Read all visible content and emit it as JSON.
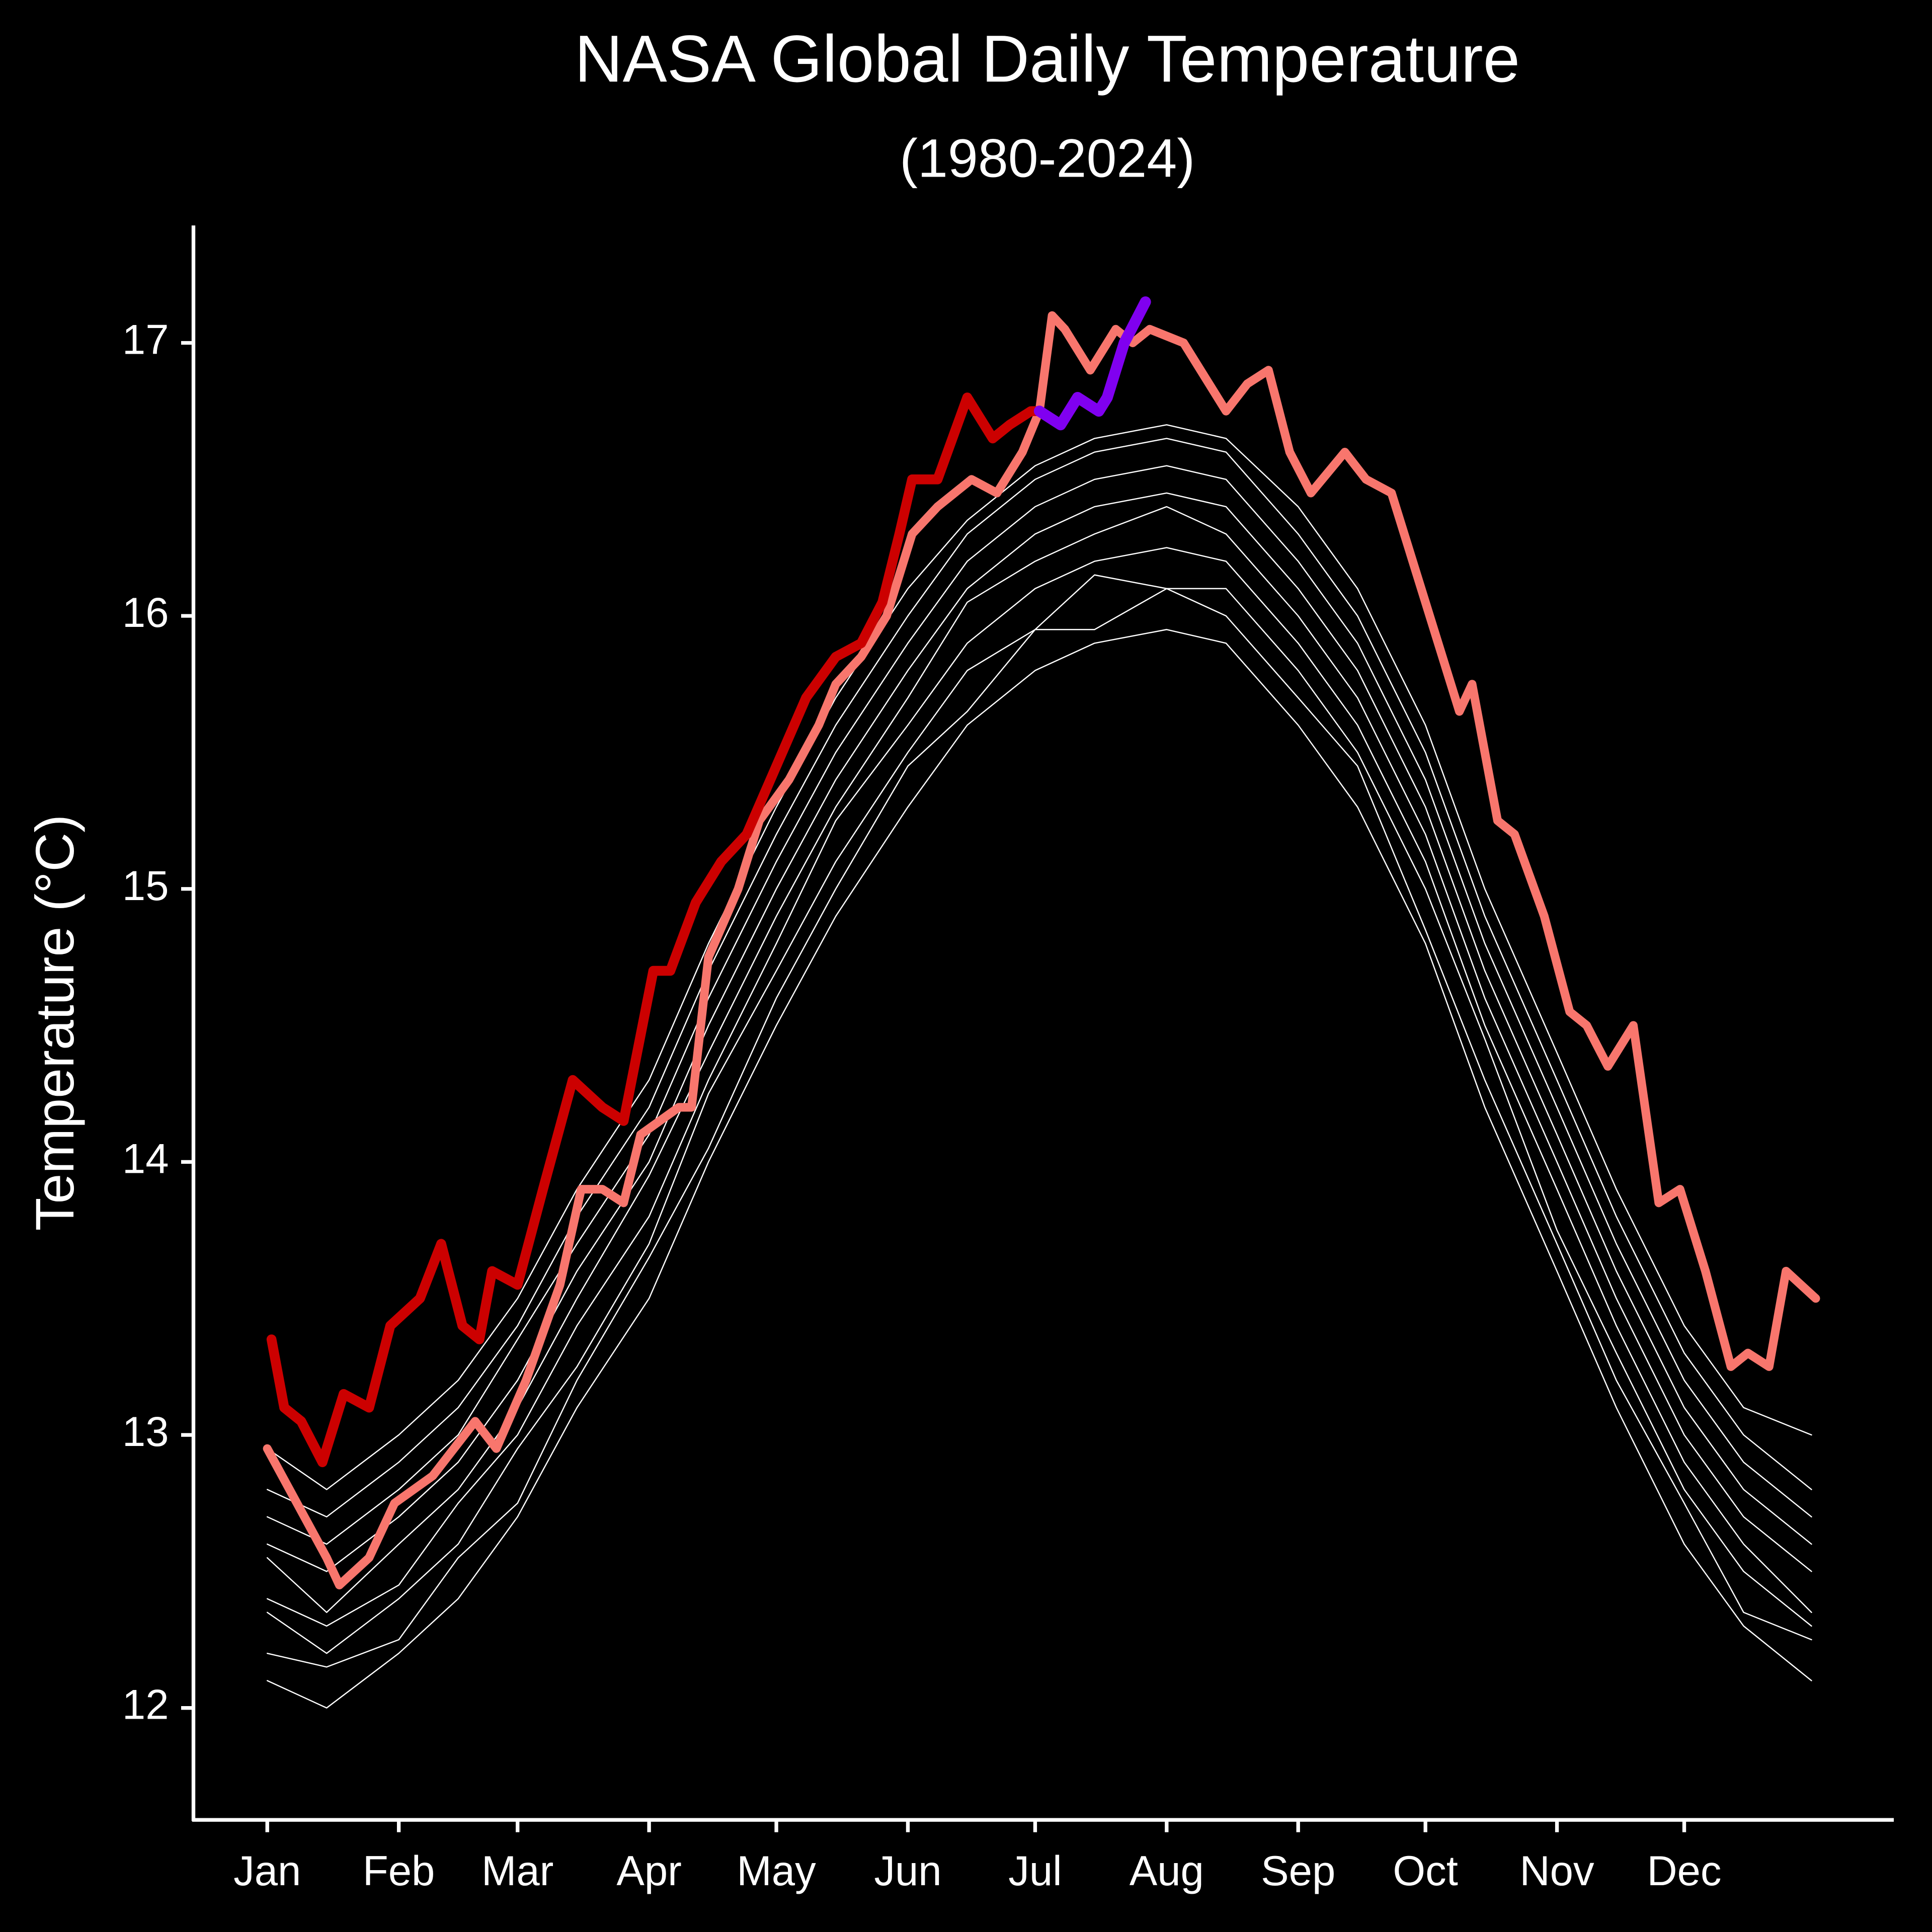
{
  "chart_data": {
    "type": "line",
    "title": "NASA Global Daily Temperature",
    "subtitle": "(1980-2024)",
    "y_label": "Temperature (°C)",
    "background": "#000000",
    "xlim": [
      -16.4,
      384.4
    ],
    "ylim": [
      11.59,
      17.43
    ],
    "xticks": [
      {
        "value": 1,
        "label": "Jan"
      },
      {
        "value": 32,
        "label": "Feb"
      },
      {
        "value": 60,
        "label": "Mar"
      },
      {
        "value": 91,
        "label": "Apr"
      },
      {
        "value": 121,
        "label": "May"
      },
      {
        "value": 152,
        "label": "Jun"
      },
      {
        "value": 182,
        "label": "Jul"
      },
      {
        "value": 213,
        "label": "Aug"
      },
      {
        "value": 244,
        "label": "Sep"
      },
      {
        "value": 274,
        "label": "Oct"
      },
      {
        "value": 305,
        "label": "Nov"
      },
      {
        "value": 335,
        "label": "Dec"
      }
    ],
    "yticks": [
      12,
      13,
      14,
      15,
      16,
      17
    ],
    "grid": false,
    "x": [
      1,
      15,
      32,
      46,
      60,
      74,
      91,
      105,
      121,
      135,
      152,
      166,
      182,
      196,
      213,
      227,
      244,
      258,
      274,
      288,
      305,
      319,
      335,
      349,
      365
    ],
    "series": [
      {
        "color": "#ffffff",
        "width": 1,
        "values": [
          12.1,
          12.0,
          12.2,
          12.4,
          12.7,
          13.1,
          13.5,
          14.0,
          14.5,
          14.9,
          15.3,
          15.6,
          15.8,
          15.9,
          15.95,
          15.9,
          15.6,
          15.3,
          14.8,
          14.2,
          13.6,
          13.1,
          12.6,
          12.3,
          12.1
        ]
      },
      {
        "color": "#ffffff",
        "width": 1,
        "values": [
          12.2,
          12.15,
          12.25,
          12.55,
          12.75,
          13.2,
          13.65,
          14.05,
          14.6,
          15.0,
          15.45,
          15.65,
          15.95,
          15.95,
          16.1,
          16.0,
          15.7,
          15.45,
          14.85,
          14.3,
          13.7,
          13.2,
          12.75,
          12.35,
          12.25
        ]
      },
      {
        "color": "#ffffff",
        "width": 1,
        "values": [
          12.35,
          12.2,
          12.4,
          12.6,
          12.95,
          13.25,
          13.7,
          14.25,
          14.7,
          15.1,
          15.5,
          15.8,
          15.95,
          16.15,
          16.1,
          16.1,
          15.8,
          15.5,
          15.0,
          14.45,
          13.75,
          13.3,
          12.8,
          12.5,
          12.3
        ]
      },
      {
        "color": "#ffffff",
        "width": 1,
        "values": [
          12.4,
          12.3,
          12.45,
          12.75,
          13.0,
          13.4,
          13.8,
          14.3,
          14.8,
          15.25,
          15.6,
          15.9,
          16.1,
          16.2,
          16.25,
          16.2,
          15.9,
          15.6,
          15.1,
          14.5,
          13.9,
          13.4,
          12.9,
          12.6,
          12.35
        ]
      },
      {
        "color": "#ffffff",
        "width": 1,
        "values": [
          12.55,
          12.35,
          12.6,
          12.8,
          13.1,
          13.5,
          13.95,
          14.4,
          14.9,
          15.3,
          15.7,
          16.05,
          16.2,
          16.3,
          16.4,
          16.3,
          16.0,
          15.7,
          15.2,
          14.6,
          14.0,
          13.5,
          13.0,
          12.7,
          12.5
        ]
      },
      {
        "color": "#ffffff",
        "width": 1,
        "values": [
          12.6,
          12.5,
          12.7,
          12.9,
          13.2,
          13.6,
          14.0,
          14.5,
          15.0,
          15.4,
          15.8,
          16.1,
          16.3,
          16.4,
          16.45,
          16.4,
          16.1,
          15.8,
          15.3,
          14.7,
          14.1,
          13.6,
          13.1,
          12.8,
          12.6
        ]
      },
      {
        "color": "#ffffff",
        "width": 1,
        "values": [
          12.7,
          12.6,
          12.8,
          13.0,
          13.35,
          13.7,
          14.1,
          14.6,
          15.1,
          15.5,
          15.9,
          16.2,
          16.4,
          16.5,
          16.55,
          16.5,
          16.2,
          15.9,
          15.4,
          14.8,
          14.2,
          13.7,
          13.2,
          12.9,
          12.7
        ]
      },
      {
        "color": "#ffffff",
        "width": 1,
        "values": [
          12.8,
          12.7,
          12.9,
          13.1,
          13.4,
          13.8,
          14.2,
          14.7,
          15.2,
          15.6,
          16.0,
          16.3,
          16.5,
          16.6,
          16.65,
          16.6,
          16.3,
          16.0,
          15.5,
          14.9,
          14.3,
          13.8,
          13.3,
          13.0,
          12.8
        ]
      },
      {
        "color": "#ffffff",
        "width": 1,
        "values": [
          12.95,
          12.8,
          13.0,
          13.2,
          13.5,
          13.9,
          14.3,
          14.8,
          15.3,
          15.7,
          16.1,
          16.35,
          16.55,
          16.65,
          16.7,
          16.65,
          16.4,
          16.1,
          15.6,
          15.0,
          14.4,
          13.9,
          13.4,
          13.1,
          13.0
        ]
      },
      {
        "color": "#f8766d",
        "width": 7,
        "x": [
          1,
          8,
          15,
          18,
          25,
          31,
          40,
          50,
          55,
          62,
          70,
          75,
          80,
          85,
          89,
          98,
          101,
          105,
          112,
          117,
          124,
          131,
          135,
          141,
          147,
          153,
          159,
          167,
          173,
          179,
          183,
          186,
          189,
          195,
          201,
          205,
          209,
          217,
          223,
          227,
          232,
          237,
          242,
          247,
          255,
          260,
          266,
          272,
          276,
          282,
          285,
          291,
          295,
          302,
          308,
          312,
          317,
          323,
          329,
          334,
          340,
          346,
          350,
          355,
          359,
          366
        ],
        "values": [
          12.95,
          12.75,
          12.55,
          12.45,
          12.55,
          12.75,
          12.85,
          13.05,
          12.95,
          13.2,
          13.55,
          13.9,
          13.9,
          13.85,
          14.1,
          14.2,
          14.2,
          14.75,
          15.0,
          15.25,
          15.4,
          15.6,
          15.75,
          15.85,
          16.0,
          16.3,
          16.4,
          16.5,
          16.45,
          16.6,
          16.75,
          17.1,
          17.05,
          16.9,
          17.05,
          17.0,
          17.05,
          17.0,
          16.85,
          16.75,
          16.85,
          16.9,
          16.6,
          16.45,
          16.6,
          16.5,
          16.45,
          16.15,
          15.95,
          15.65,
          15.75,
          15.25,
          15.2,
          14.9,
          14.55,
          14.5,
          14.35,
          14.5,
          13.85,
          13.9,
          13.6,
          13.25,
          13.3,
          13.25,
          13.6,
          13.5
        ]
      },
      {
        "color": "#cc0000",
        "width": 8,
        "x": [
          2,
          5,
          9,
          14,
          19,
          25,
          30,
          37,
          42,
          47,
          51,
          54,
          60,
          66,
          73,
          80,
          85,
          92,
          96,
          102,
          108,
          114,
          121,
          128,
          135,
          141,
          146,
          150,
          153,
          159,
          166,
          172,
          176,
          181,
          183
        ],
        "values": [
          13.35,
          13.1,
          13.05,
          12.9,
          13.15,
          13.1,
          13.4,
          13.5,
          13.7,
          13.4,
          13.35,
          13.6,
          13.55,
          13.9,
          14.3,
          14.2,
          14.15,
          14.7,
          14.7,
          14.95,
          15.1,
          15.2,
          15.45,
          15.7,
          15.85,
          15.9,
          16.05,
          16.3,
          16.5,
          16.5,
          16.8,
          16.65,
          16.7,
          16.75,
          16.75
        ]
      },
      {
        "color": "#8000f0",
        "width": 9,
        "x": [
          183,
          188,
          192,
          197,
          199,
          203,
          208
        ],
        "values": [
          16.75,
          16.7,
          16.8,
          16.75,
          16.8,
          17.0,
          17.15
        ]
      }
    ]
  }
}
